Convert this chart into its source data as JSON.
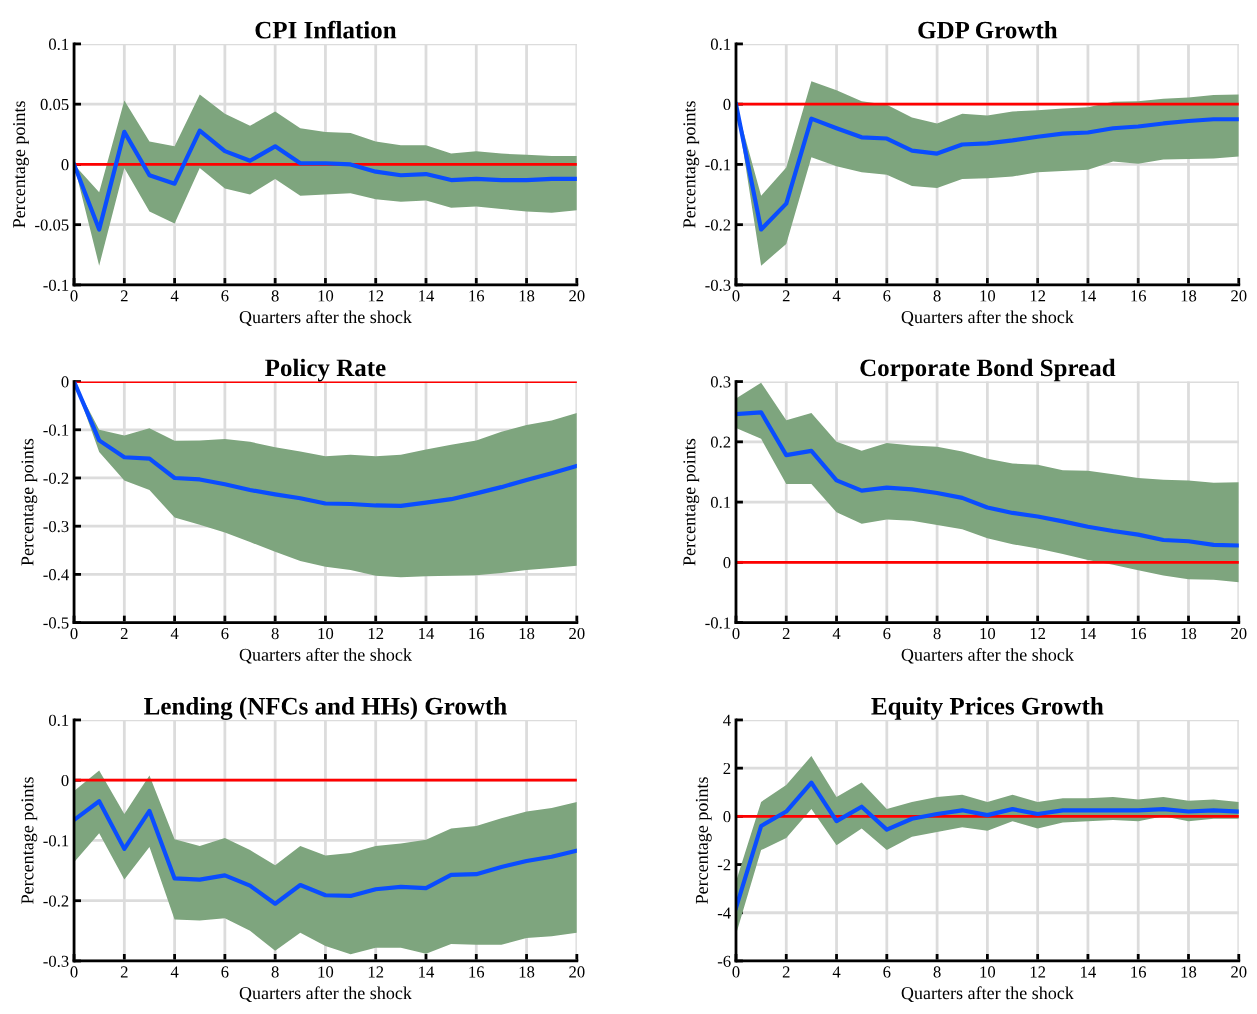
{
  "chart_data": [
    {
      "type": "line",
      "title": "CPI Inflation",
      "xlabel": "Quarters after the shock",
      "ylabel": "Percentage points",
      "x": [
        0,
        1,
        2,
        3,
        4,
        5,
        6,
        7,
        8,
        9,
        10,
        11,
        12,
        13,
        14,
        15,
        16,
        17,
        18,
        19,
        20
      ],
      "xlim": [
        0,
        20
      ],
      "xticks": [
        0,
        2,
        4,
        6,
        8,
        10,
        12,
        14,
        16,
        18,
        20
      ],
      "ylim": [
        -0.1,
        0.1
      ],
      "yticks": [
        -0.1,
        -0.05,
        0,
        0.05,
        0.1
      ],
      "grid": true,
      "ref_lines": [
        {
          "axis": "y",
          "value": 0,
          "color": "#ff0000"
        }
      ],
      "series": [
        {
          "color": "#0a4dff",
          "values": [
            0,
            -0.054,
            0.027,
            -0.009,
            -0.016,
            0.028,
            0.011,
            0.003,
            0.015,
            0.001,
            0.001,
            0,
            -0.006,
            -0.009,
            -0.008,
            -0.013,
            -0.012,
            -0.013,
            -0.013,
            -0.012,
            -0.012
          ],
          "upper": [
            0,
            -0.023,
            0.053,
            0.019,
            0.015,
            0.058,
            0.042,
            0.032,
            0.044,
            0.03,
            0.027,
            0.026,
            0.019,
            0.016,
            0.016,
            0.009,
            0.011,
            0.009,
            0.008,
            0.007,
            0.007
          ],
          "lower": [
            0,
            -0.084,
            -0.003,
            -0.039,
            -0.049,
            -0.003,
            -0.02,
            -0.025,
            -0.012,
            -0.026,
            -0.025,
            -0.024,
            -0.029,
            -0.031,
            -0.03,
            -0.036,
            -0.035,
            -0.037,
            -0.039,
            -0.04,
            -0.038
          ]
        }
      ]
    },
    {
      "type": "line",
      "title": "GDP Growth",
      "xlabel": "Quarters after the shock",
      "ylabel": "Percentage points",
      "x": [
        0,
        1,
        2,
        3,
        4,
        5,
        6,
        7,
        8,
        9,
        10,
        11,
        12,
        13,
        14,
        15,
        16,
        17,
        18,
        19,
        20
      ],
      "xlim": [
        0,
        20
      ],
      "xticks": [
        0,
        2,
        4,
        6,
        8,
        10,
        12,
        14,
        16,
        18,
        20
      ],
      "ylim": [
        -0.3,
        0.1
      ],
      "yticks": [
        -0.3,
        -0.2,
        -0.1,
        0,
        0.1
      ],
      "grid": true,
      "ref_lines": [
        {
          "axis": "y",
          "value": 0,
          "color": "#ff0000"
        }
      ],
      "series": [
        {
          "color": "#0a4dff",
          "values": [
            0,
            -0.208,
            -0.165,
            -0.024,
            -0.04,
            -0.055,
            -0.057,
            -0.077,
            -0.082,
            -0.067,
            -0.065,
            -0.06,
            -0.054,
            -0.049,
            -0.047,
            -0.04,
            -0.037,
            -0.032,
            -0.028,
            -0.025,
            -0.025
          ],
          "upper": [
            0,
            -0.152,
            -0.105,
            0.038,
            0.023,
            0.005,
            -0.001,
            -0.022,
            -0.032,
            -0.016,
            -0.019,
            -0.012,
            -0.01,
            -0.007,
            -0.005,
            0.004,
            0.005,
            0.009,
            0.011,
            0.015,
            0.016
          ],
          "lower": [
            0,
            -0.268,
            -0.232,
            -0.088,
            -0.103,
            -0.113,
            -0.117,
            -0.136,
            -0.139,
            -0.124,
            -0.123,
            -0.12,
            -0.113,
            -0.111,
            -0.109,
            -0.095,
            -0.099,
            -0.092,
            -0.091,
            -0.09,
            -0.087
          ]
        }
      ]
    },
    {
      "type": "line",
      "title": "Policy Rate",
      "xlabel": "Quarters after the shock",
      "ylabel": "Percentage points",
      "x": [
        0,
        1,
        2,
        3,
        4,
        5,
        6,
        7,
        8,
        9,
        10,
        11,
        12,
        13,
        14,
        15,
        16,
        17,
        18,
        19,
        20
      ],
      "xlim": [
        0,
        20
      ],
      "xticks": [
        0,
        2,
        4,
        6,
        8,
        10,
        12,
        14,
        16,
        18,
        20
      ],
      "ylim": [
        -0.5,
        0
      ],
      "yticks": [
        -0.5,
        -0.4,
        -0.3,
        -0.2,
        -0.1,
        0
      ],
      "grid": true,
      "ref_lines": [
        {
          "axis": "y",
          "value": 0,
          "color": "#ff0000"
        }
      ],
      "series": [
        {
          "color": "#0a4dff",
          "values": [
            0,
            -0.122,
            -0.157,
            -0.16,
            -0.2,
            -0.203,
            -0.213,
            -0.225,
            -0.234,
            -0.242,
            -0.253,
            -0.254,
            -0.257,
            -0.258,
            -0.251,
            -0.244,
            -0.232,
            -0.219,
            -0.204,
            -0.19,
            -0.175
          ],
          "upper": [
            0,
            -0.1,
            -0.112,
            -0.097,
            -0.123,
            -0.122,
            -0.119,
            -0.125,
            -0.136,
            -0.145,
            -0.155,
            -0.152,
            -0.155,
            -0.152,
            -0.141,
            -0.131,
            -0.122,
            -0.104,
            -0.09,
            -0.081,
            -0.065
          ],
          "lower": [
            0,
            -0.146,
            -0.205,
            -0.225,
            -0.282,
            -0.297,
            -0.313,
            -0.333,
            -0.353,
            -0.372,
            -0.384,
            -0.391,
            -0.403,
            -0.406,
            -0.404,
            -0.403,
            -0.402,
            -0.397,
            -0.391,
            -0.387,
            -0.382
          ]
        }
      ]
    },
    {
      "type": "line",
      "title": "Corporate Bond Spread",
      "xlabel": "Quarters after the shock",
      "ylabel": "Percentage points",
      "x": [
        0,
        1,
        2,
        3,
        4,
        5,
        6,
        7,
        8,
        9,
        10,
        11,
        12,
        13,
        14,
        15,
        16,
        17,
        18,
        19,
        20
      ],
      "xlim": [
        0,
        20
      ],
      "xticks": [
        0,
        2,
        4,
        6,
        8,
        10,
        12,
        14,
        16,
        18,
        20
      ],
      "ylim": [
        -0.1,
        0.3
      ],
      "yticks": [
        -0.1,
        0,
        0.1,
        0.2,
        0.3
      ],
      "grid": true,
      "ref_lines": [
        {
          "axis": "y",
          "value": 0,
          "color": "#ff0000"
        }
      ],
      "series": [
        {
          "color": "#0a4dff",
          "values": [
            0.246,
            0.249,
            0.178,
            0.185,
            0.136,
            0.119,
            0.124,
            0.121,
            0.115,
            0.107,
            0.091,
            0.082,
            0.076,
            0.068,
            0.059,
            0.052,
            0.046,
            0.037,
            0.035,
            0.029,
            0.028
          ],
          "upper": [
            0.272,
            0.298,
            0.236,
            0.248,
            0.2,
            0.185,
            0.198,
            0.194,
            0.192,
            0.184,
            0.172,
            0.164,
            0.162,
            0.153,
            0.152,
            0.146,
            0.14,
            0.137,
            0.136,
            0.132,
            0.133
          ],
          "lower": [
            0.223,
            0.205,
            0.13,
            0.13,
            0.083,
            0.064,
            0.071,
            0.069,
            0.062,
            0.055,
            0.04,
            0.03,
            0.023,
            0.014,
            0.004,
            -0.004,
            -0.013,
            -0.022,
            -0.028,
            -0.029,
            -0.033
          ]
        }
      ]
    },
    {
      "type": "line",
      "title": "Lending (NFCs and HHs) Growth",
      "xlabel": "Quarters after the shock",
      "ylabel": "Percentage points",
      "x": [
        0,
        1,
        2,
        3,
        4,
        5,
        6,
        7,
        8,
        9,
        10,
        11,
        12,
        13,
        14,
        15,
        16,
        17,
        18,
        19,
        20
      ],
      "xlim": [
        0,
        20
      ],
      "xticks": [
        0,
        2,
        4,
        6,
        8,
        10,
        12,
        14,
        16,
        18,
        20
      ],
      "ylim": [
        -0.3,
        0.1
      ],
      "yticks": [
        -0.3,
        -0.2,
        -0.1,
        0,
        0.1
      ],
      "grid": true,
      "ref_lines": [
        {
          "axis": "y",
          "value": 0,
          "color": "#ff0000"
        }
      ],
      "series": [
        {
          "color": "#0a4dff",
          "values": [
            -0.066,
            -0.035,
            -0.114,
            -0.051,
            -0.163,
            -0.165,
            -0.158,
            -0.175,
            -0.205,
            -0.174,
            -0.191,
            -0.192,
            -0.181,
            -0.177,
            -0.179,
            -0.157,
            -0.156,
            -0.144,
            -0.134,
            -0.127,
            -0.117
          ],
          "upper": [
            -0.018,
            0.016,
            -0.056,
            0.008,
            -0.098,
            -0.109,
            -0.096,
            -0.116,
            -0.141,
            -0.109,
            -0.125,
            -0.121,
            -0.109,
            -0.105,
            -0.099,
            -0.08,
            -0.076,
            -0.063,
            -0.052,
            -0.046,
            -0.036
          ],
          "lower": [
            -0.136,
            -0.088,
            -0.165,
            -0.111,
            -0.231,
            -0.233,
            -0.229,
            -0.25,
            -0.283,
            -0.253,
            -0.275,
            -0.289,
            -0.278,
            -0.278,
            -0.288,
            -0.272,
            -0.273,
            -0.273,
            -0.262,
            -0.259,
            -0.253
          ]
        }
      ]
    },
    {
      "type": "line",
      "title": "Equity Prices Growth",
      "xlabel": "Quarters after the shock",
      "ylabel": "Percentage points",
      "x": [
        0,
        1,
        2,
        3,
        4,
        5,
        6,
        7,
        8,
        9,
        10,
        11,
        12,
        13,
        14,
        15,
        16,
        17,
        18,
        19,
        20
      ],
      "xlim": [
        0,
        20
      ],
      "xticks": [
        0,
        2,
        4,
        6,
        8,
        10,
        12,
        14,
        16,
        18,
        20
      ],
      "ylim": [
        -6,
        4
      ],
      "yticks": [
        -6,
        -4,
        -2,
        0,
        2,
        4
      ],
      "grid": true,
      "ref_lines": [
        {
          "axis": "y",
          "value": 0,
          "color": "#ff0000"
        }
      ],
      "series": [
        {
          "color": "#0a4dff",
          "values": [
            -3.8,
            -0.4,
            0.2,
            1.4,
            -0.2,
            0.4,
            -0.55,
            -0.1,
            0.1,
            0.25,
            0.05,
            0.3,
            0.1,
            0.25,
            0.25,
            0.25,
            0.25,
            0.3,
            0.2,
            0.25,
            0.2
          ],
          "upper": [
            -2.7,
            0.6,
            1.3,
            2.5,
            0.8,
            1.4,
            0.3,
            0.6,
            0.8,
            0.9,
            0.6,
            0.9,
            0.6,
            0.75,
            0.75,
            0.8,
            0.7,
            0.8,
            0.65,
            0.7,
            0.6
          ],
          "lower": [
            -4.9,
            -1.4,
            -0.9,
            0.3,
            -1.2,
            -0.5,
            -1.4,
            -0.85,
            -0.65,
            -0.45,
            -0.6,
            -0.2,
            -0.5,
            -0.25,
            -0.2,
            -0.15,
            -0.2,
            0.0,
            -0.2,
            -0.1,
            -0.1
          ]
        }
      ]
    }
  ]
}
